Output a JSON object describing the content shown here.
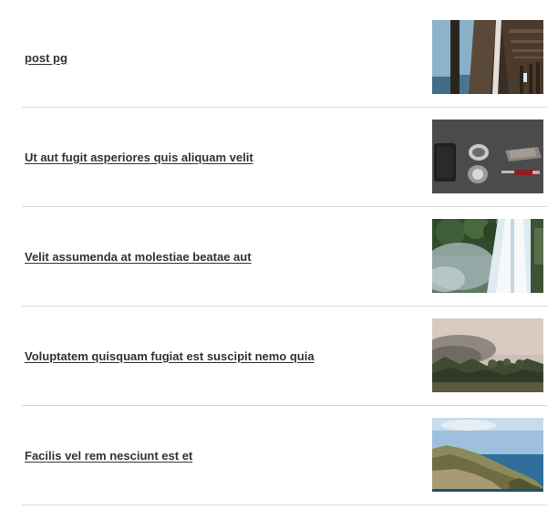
{
  "posts": [
    {
      "title": "post pg",
      "thumbnail": "pier-boardwalk-photo"
    },
    {
      "title": "Ut aut fugit asperiores quis aliquam velit",
      "thumbnail": "flatlay-accessories-photo"
    },
    {
      "title": "Velit assumenda at molestiae beatae aut",
      "thumbnail": "waterfall-photo"
    },
    {
      "title": "Voluptatem quisquam fugiat est suscipit nemo quia",
      "thumbnail": "foggy-forest-photo"
    },
    {
      "title": "Facilis vel rem nesciunt est et",
      "thumbnail": "coastal-cliff-photo"
    }
  ]
}
